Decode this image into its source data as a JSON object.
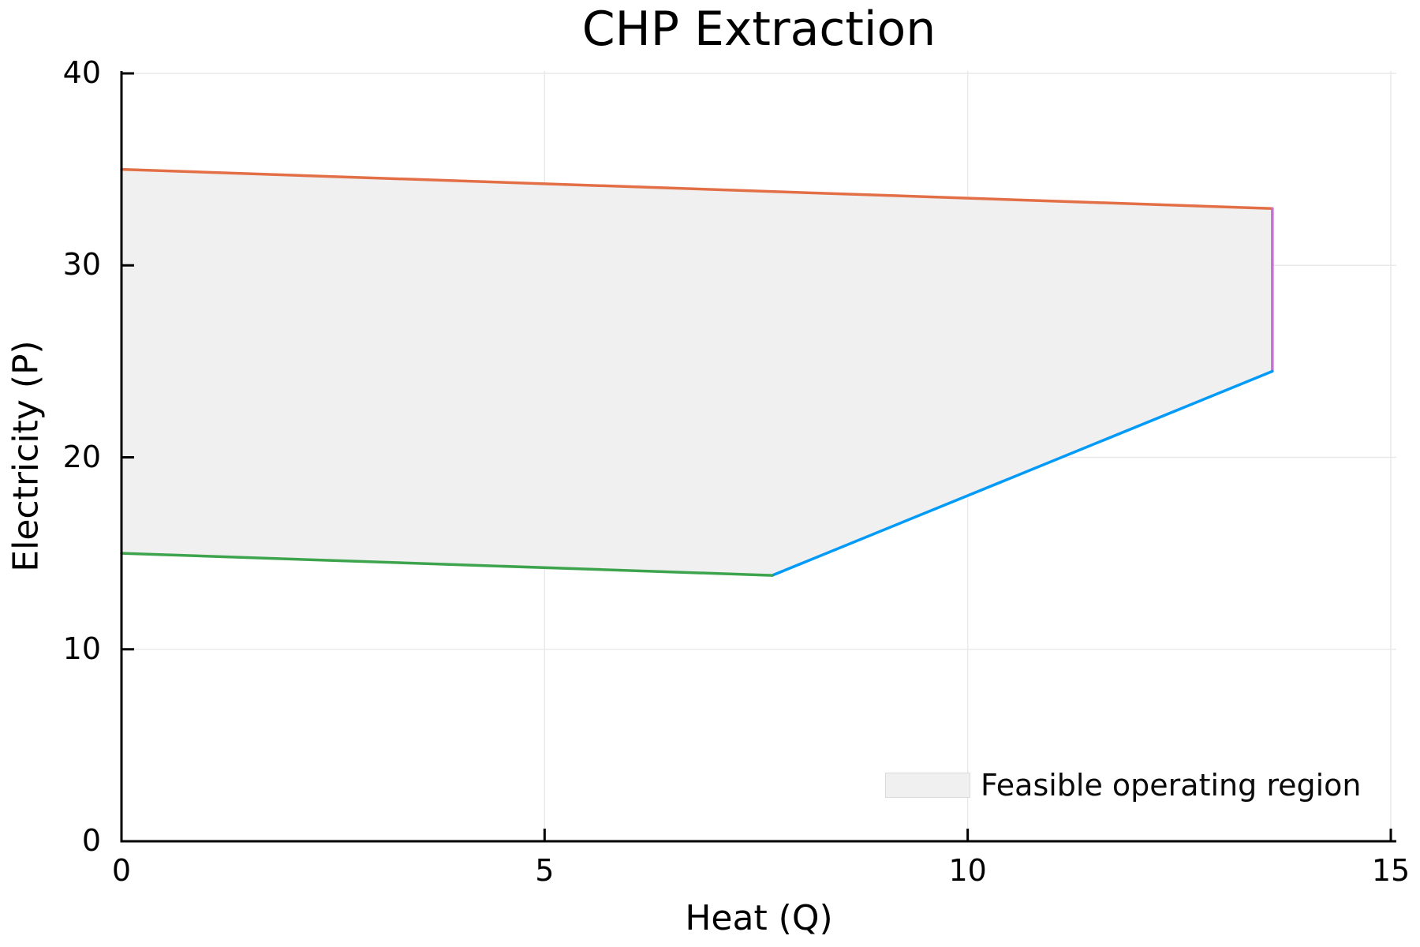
{
  "title": "CHP Extraction",
  "axes": {
    "x_label": "Heat (Q)",
    "y_label": "Electricity (P)"
  },
  "legend": {
    "label": "Feasible operating region",
    "swatch_color": "#f0f0f0",
    "swatch_border": "#dadada"
  },
  "colors": {
    "background": "#ffffff",
    "axis": "#000000",
    "gridline": "#e9e9e9",
    "region_fill": "#f0f0f0",
    "upper_bound": "#e26f46",
    "right_bound": "#c371d2",
    "backpressure_bound": "#009af9",
    "lower_bound": "#3da44d"
  },
  "chart_data": {
    "type": "area",
    "title": "CHP Extraction",
    "xlabel": "Heat (Q)",
    "ylabel": "Electricity (P)",
    "xlim": [
      0,
      15
    ],
    "ylim": [
      0,
      40
    ],
    "xticks": [
      0,
      5,
      10,
      15
    ],
    "yticks": [
      0,
      10,
      20,
      30,
      40
    ],
    "grid": true,
    "legend_position": "bottom-right",
    "legend_label": "Feasible operating region",
    "region": {
      "name": "Feasible operating region",
      "fill_color": "#f0f0f0",
      "vertices": [
        [
          0,
          35
        ],
        [
          13.6,
          32.96
        ],
        [
          13.6,
          24.48
        ],
        [
          7.69,
          13.85
        ],
        [
          0,
          15
        ]
      ]
    },
    "boundary_segments": [
      {
        "name": "upper-electricity-limit",
        "color": "#e26f46",
        "points": [
          [
            0,
            35
          ],
          [
            13.6,
            32.96
          ]
        ]
      },
      {
        "name": "max-heat-limit",
        "color": "#c371d2",
        "points": [
          [
            13.6,
            32.96
          ],
          [
            13.6,
            24.48
          ]
        ]
      },
      {
        "name": "backpressure-limit",
        "color": "#009af9",
        "points": [
          [
            7.69,
            13.85
          ],
          [
            13.6,
            24.48
          ]
        ]
      },
      {
        "name": "lower-electricity-limit",
        "color": "#3da44d",
        "points": [
          [
            0,
            15
          ],
          [
            7.69,
            13.85
          ]
        ]
      }
    ]
  }
}
